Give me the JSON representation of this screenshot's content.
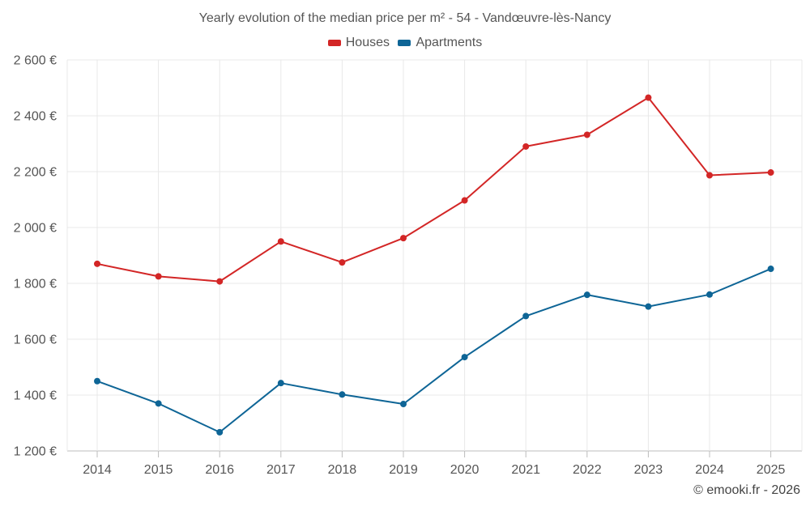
{
  "colors": {
    "houses": "#d32626",
    "apartments": "#0e6596",
    "grid": "#e8e8e8",
    "axis": "#bcbcbc",
    "text": "#555555"
  },
  "credit": "© emooki.fr - 2026",
  "chart_data": {
    "type": "line",
    "title": "Yearly evolution of the median price per m² - 54 - Vandœuvre-lès-Nancy",
    "xlabel": "",
    "ylabel": "",
    "categories": [
      "2014",
      "2015",
      "2016",
      "2017",
      "2018",
      "2019",
      "2020",
      "2021",
      "2022",
      "2023",
      "2024",
      "2025"
    ],
    "ylim": [
      1200,
      2600
    ],
    "yticks": [
      1200,
      1400,
      1600,
      1800,
      2000,
      2200,
      2400,
      2600
    ],
    "ytick_labels": [
      "1 200 €",
      "1 400 €",
      "1 600 €",
      "1 800 €",
      "2 000 €",
      "2 200 €",
      "2 400 €",
      "2 600 €"
    ],
    "legend_position": "top-center",
    "grid": true,
    "series": [
      {
        "name": "Houses",
        "color": "#d32626",
        "values": [
          1870,
          1825,
          1807,
          1950,
          1875,
          1962,
          2097,
          2290,
          2332,
          2465,
          2187,
          2197
        ]
      },
      {
        "name": "Apartments",
        "color": "#0e6596",
        "values": [
          1450,
          1370,
          1267,
          1443,
          1402,
          1368,
          1536,
          1683,
          1759,
          1717,
          1760,
          1852
        ]
      }
    ]
  }
}
